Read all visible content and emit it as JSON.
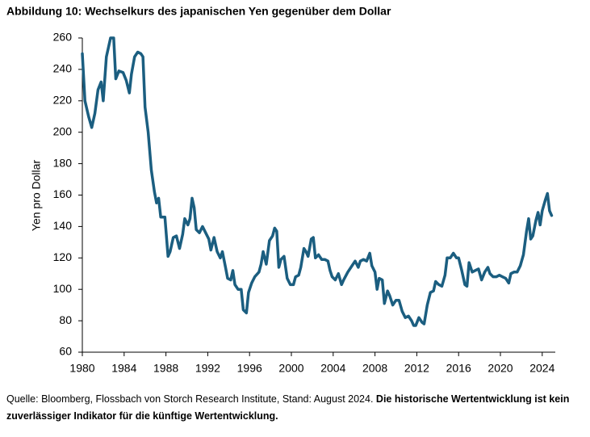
{
  "chart_data": {
    "type": "line",
    "title": "Abbildung 10: Wechselkurs des japanischen Yen gegenüber dem Dollar",
    "y_label": "Yen pro Dollar",
    "source": "Quelle: Bloomberg, Flossbach von Storch Research Institute, Stand: August 2024.",
    "note": "Die historische Wertentwicklung ist kein zuverlässiger Indikator für die künftige Wertentwicklung.",
    "xlim": [
      1980,
      2025.25
    ],
    "xticks": [
      1980,
      1984,
      1988,
      1992,
      1996,
      2000,
      2004,
      2008,
      2012,
      2016,
      2020,
      2024
    ],
    "ylim": [
      60,
      260
    ],
    "yticks": [
      60,
      80,
      100,
      120,
      140,
      160,
      180,
      200,
      220,
      240,
      260
    ],
    "grid": false,
    "x": [
      1980.0,
      1980.25,
      1980.6,
      1980.9,
      1981.2,
      1981.5,
      1981.8,
      1982.0,
      1982.3,
      1982.7,
      1983.0,
      1983.2,
      1983.5,
      1983.9,
      1984.2,
      1984.5,
      1984.7,
      1985.0,
      1985.3,
      1985.6,
      1985.8,
      1986.0,
      1986.3,
      1986.6,
      1986.9,
      1987.1,
      1987.3,
      1987.5,
      1987.9,
      1988.2,
      1988.4,
      1988.7,
      1989.0,
      1989.3,
      1989.6,
      1989.8,
      1990.1,
      1990.3,
      1990.5,
      1990.7,
      1990.9,
      1991.2,
      1991.5,
      1991.8,
      1992.1,
      1992.3,
      1992.6,
      1992.9,
      1993.2,
      1993.4,
      1993.7,
      1993.9,
      1994.2,
      1994.4,
      1994.6,
      1994.9,
      1995.2,
      1995.4,
      1995.7,
      1995.9,
      1996.2,
      1996.5,
      1996.9,
      1997.1,
      1997.3,
      1997.6,
      1997.9,
      1998.2,
      1998.4,
      1998.6,
      1998.8,
      1999.0,
      1999.3,
      1999.6,
      1999.9,
      2000.2,
      2000.4,
      2000.7,
      2000.9,
      2001.2,
      2001.4,
      2001.6,
      2001.9,
      2002.1,
      2002.3,
      2002.6,
      2002.9,
      2003.2,
      2003.5,
      2003.7,
      2003.9,
      2004.2,
      2004.5,
      2004.8,
      2005.0,
      2005.4,
      2005.8,
      2006.1,
      2006.4,
      2006.6,
      2006.9,
      2007.2,
      2007.5,
      2007.7,
      2008.0,
      2008.2,
      2008.4,
      2008.7,
      2008.9,
      2009.2,
      2009.4,
      2009.7,
      2010.0,
      2010.3,
      2010.6,
      2010.9,
      2011.2,
      2011.5,
      2011.7,
      2011.9,
      2012.2,
      2012.5,
      2012.7,
      2013.0,
      2013.3,
      2013.6,
      2013.8,
      2014.1,
      2014.4,
      2014.7,
      2014.9,
      2015.2,
      2015.5,
      2015.8,
      2016.0,
      2016.3,
      2016.6,
      2016.8,
      2017.0,
      2017.3,
      2017.6,
      2017.9,
      2018.2,
      2018.5,
      2018.8,
      2019.0,
      2019.3,
      2019.6,
      2019.9,
      2020.2,
      2020.5,
      2020.8,
      2021.0,
      2021.3,
      2021.6,
      2021.9,
      2022.2,
      2022.5,
      2022.7,
      2022.9,
      2023.1,
      2023.4,
      2023.6,
      2023.8,
      2024.0,
      2024.3,
      2024.5,
      2024.7,
      2024.9
    ],
    "series": [
      {
        "name": "Yen pro Dollar",
        "color": "#1b5e80",
        "values": [
          250,
          220,
          210,
          203,
          212,
          227,
          232,
          220,
          248,
          260,
          260,
          234,
          239,
          238,
          233,
          225,
          237,
          248,
          251,
          250,
          248,
          216,
          200,
          176,
          162,
          155,
          158,
          146,
          146,
          121,
          124,
          133,
          134,
          126,
          135,
          145,
          141,
          145,
          158,
          152,
          138,
          136,
          140,
          136,
          132,
          125,
          133,
          124,
          120,
          124,
          114,
          107,
          106,
          112,
          103,
          100,
          100,
          87,
          85,
          98,
          104,
          108,
          111,
          116,
          124,
          116,
          131,
          134,
          139,
          137,
          114,
          119,
          121,
          107,
          103,
          103,
          108,
          109,
          114,
          126,
          124,
          121,
          132,
          133,
          120,
          122,
          119,
          119,
          118,
          112,
          108,
          106,
          110,
          103,
          106,
          111,
          115,
          118,
          114,
          118,
          119,
          118,
          123,
          115,
          111,
          100,
          107,
          106,
          91,
          99,
          96,
          90,
          93,
          93,
          86,
          82,
          83,
          80,
          77,
          77,
          82,
          79,
          78,
          90,
          98,
          99,
          105,
          103,
          102,
          109,
          120,
          120,
          123,
          120,
          120,
          112,
          103,
          102,
          117,
          111,
          112,
          113,
          106,
          111,
          114,
          110,
          108,
          108,
          109,
          108,
          107,
          104,
          110,
          111,
          111,
          115,
          122,
          137,
          145,
          132,
          134,
          144,
          149,
          141,
          150,
          157,
          161,
          150,
          147
        ]
      }
    ]
  }
}
